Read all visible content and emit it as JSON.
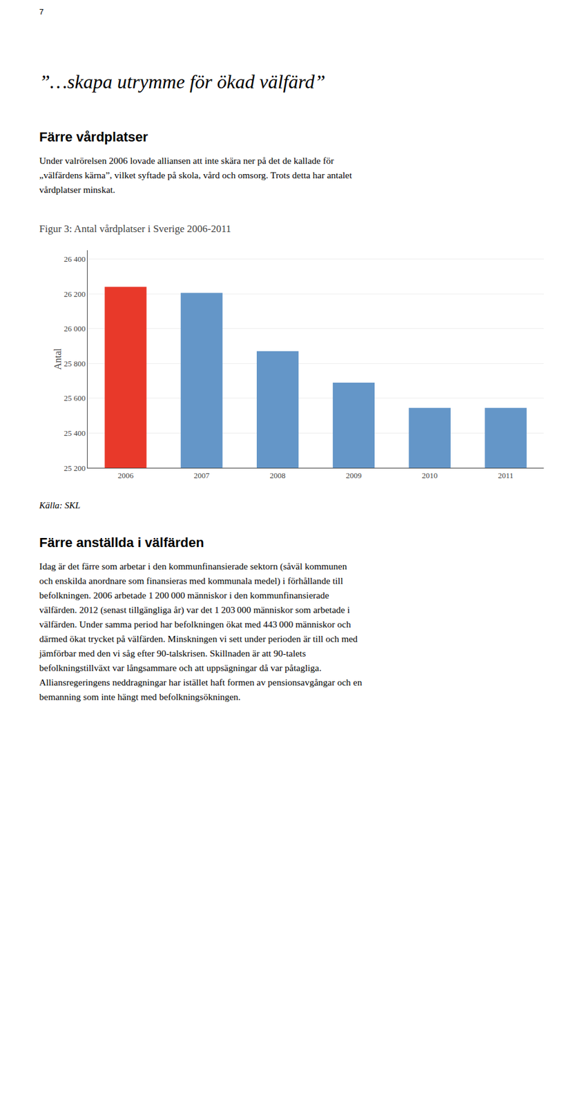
{
  "chart_data": {
    "type": "bar",
    "title": "Figur 3: Antal vårdplatser i Sverige 2006-2011",
    "ylabel": "Antal",
    "categories": [
      "2006",
      "2007",
      "2008",
      "2009",
      "2010",
      "2011"
    ],
    "values": [
      26240,
      26205,
      25870,
      25690,
      25545,
      25545
    ],
    "colors": [
      "#e8392a",
      "#6496c8",
      "#6496c8",
      "#6496c8",
      "#6496c8",
      "#6496c8"
    ],
    "ylim": [
      25200,
      26450
    ],
    "yticks": [
      {
        "value": 25200,
        "label": "25 200"
      },
      {
        "value": 25400,
        "label": "25 400"
      },
      {
        "value": 25600,
        "label": "25 600"
      },
      {
        "value": 25800,
        "label": "25 800"
      },
      {
        "value": 26000,
        "label": "26 000"
      },
      {
        "value": 26200,
        "label": "26 200"
      },
      {
        "value": 26400,
        "label": "26 400"
      }
    ],
    "grid": true,
    "annotations": [
      "7",
      "”…skapa utrymme för ökad välfärd”",
      "Färre vårdplatser",
      "Under valrörelsen 2006 lovade alliansen att inte skära ner på det de kallade för\n„välfärdens kärna”, vilket syftade på skola, vård och omsorg. Trots detta har antalet\nvårdplatser minskat.",
      "Källa: SKL",
      "Färre anställda i välfärden",
      "Idag är det färre som arbetar i den kommunfinansierade sektorn (såväl kommunen\noch enskilda anordnare som finansieras med kommunala medel) i förhållande till\nbefolkningen. 2006 arbetade 1 200 000 människor i den kommunfinansierade\nvälfärden. 2012 (senast tillgängliga år) var det 1 203 000 människor som arbetade i\nvälfärden. Under samma period har befolkningen ökat med 443 000 människor och\ndärmed ökat trycket på välfärden. Minskningen vi sett under perioden är till och med\njämförbar med den vi såg efter 90-talskrisen. Skillnaden är att 90-talets\nbefolkningstillväxt var långsammare och att uppsägningar då var påtagliga.\nAlliansregeringens neddragningar har istället haft formen av pensionsavgångar och en\nbemanning som inte hängt med befolkningsökningen."
    ]
  }
}
